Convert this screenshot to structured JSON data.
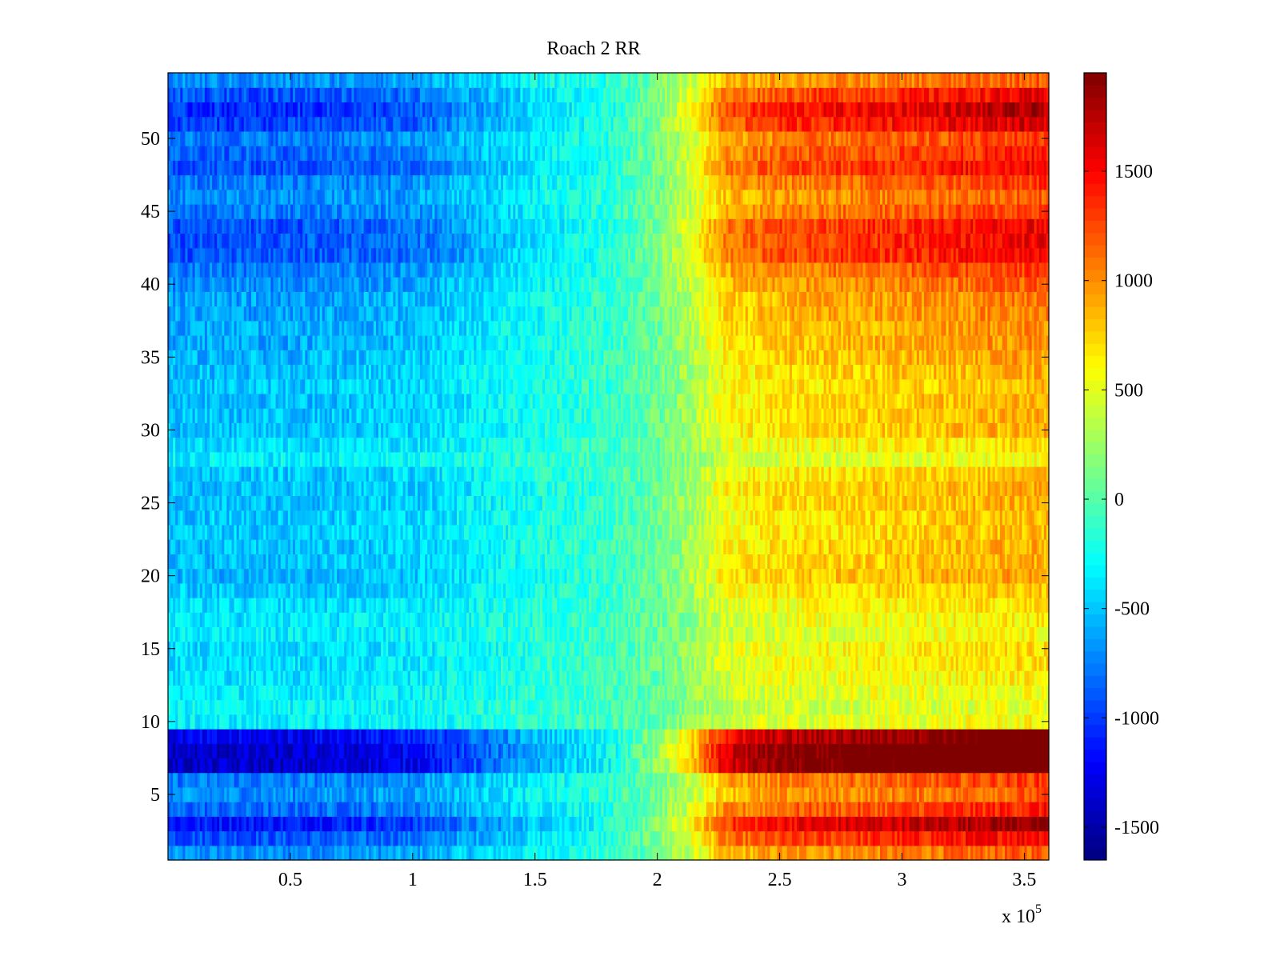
{
  "chart_data": {
    "type": "heatmap",
    "title": "Roach 2 RR",
    "xlabel": "",
    "ylabel": "",
    "x_multiplier_base": "x 10",
    "x_multiplier_exp": "5",
    "xlim": [
      0,
      3.6
    ],
    "ylim": [
      0.5,
      54.5
    ],
    "x_ticks": [
      0.5,
      1,
      1.5,
      2,
      2.5,
      3,
      3.5
    ],
    "x_tick_labels": [
      "0.5",
      "1",
      "1.5",
      "2",
      "2.5",
      "3",
      "3.5"
    ],
    "y_ticks": [
      5,
      10,
      15,
      20,
      25,
      30,
      35,
      40,
      45,
      50
    ],
    "y_tick_labels": [
      "5",
      "10",
      "15",
      "20",
      "25",
      "30",
      "35",
      "40",
      "45",
      "50"
    ],
    "rows": 54,
    "colormap": "jet",
    "color_range": [
      -1650,
      1950
    ],
    "colorbar_ticks": [
      1500,
      1000,
      500,
      0,
      -500,
      -1000,
      -1500
    ],
    "colorbar_tick_labels": [
      "1500",
      "1000",
      "500",
      "0",
      "-500",
      "-1000",
      "-1500"
    ],
    "value_trend": {
      "description_x": [
        0,
        0.5,
        1.0,
        1.5,
        1.8,
        2.0,
        2.15,
        2.27,
        2.5,
        3.0,
        3.4,
        3.6
      ],
      "typical_value": [
        -700,
        -700,
        -620,
        -300,
        -150,
        100,
        400,
        800,
        950,
        1050,
        1150,
        1200
      ]
    },
    "row_intensity": [
      1.0,
      1.3,
      1.6,
      1.2,
      1.0,
      1.1,
      2.0,
      2.0,
      1.8,
      0.5,
      0.45,
      0.5,
      0.55,
      0.6,
      0.6,
      0.5,
      0.55,
      0.6,
      0.7,
      0.8,
      0.75,
      0.75,
      0.7,
      0.7,
      0.75,
      0.75,
      0.7,
      0.5,
      0.6,
      0.75,
      0.75,
      0.75,
      0.7,
      0.75,
      0.8,
      0.85,
      0.85,
      0.9,
      0.9,
      1.0,
      1.1,
      1.3,
      1.3,
      1.3,
      1.1,
      1.0,
      1.1,
      1.3,
      1.2,
      1.1,
      1.4,
      1.5,
      1.3,
      1.0
    ]
  }
}
